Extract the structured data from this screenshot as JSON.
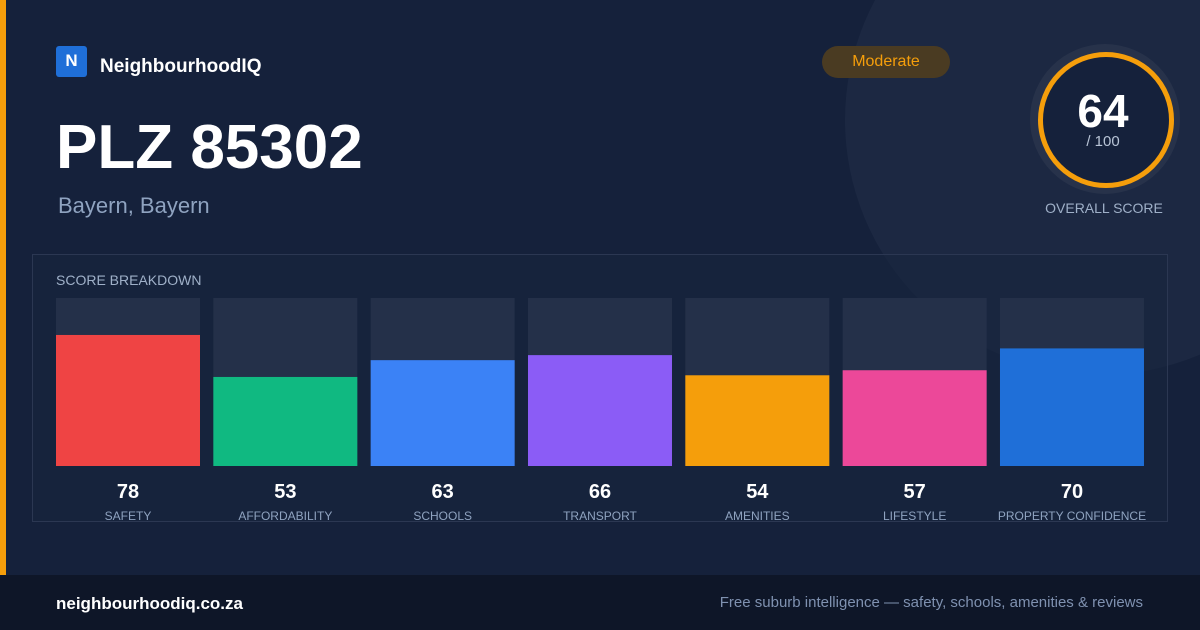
{
  "brand": {
    "logo": "N",
    "name": "NeighbourhoodIQ"
  },
  "header": {
    "title": "PLZ 85302",
    "subtitle": "Bayern, Bayern",
    "badge": "Moderate"
  },
  "overall": {
    "score": 64,
    "max": "/ 100",
    "label": "OVERALL SCORE"
  },
  "chart_data": {
    "type": "bar",
    "title": "SCORE BREAKDOWN",
    "categories": [
      "SAFETY",
      "AFFORDABILITY",
      "SCHOOLS",
      "TRANSPORT",
      "AMENITIES",
      "LIFESTYLE",
      "PROPERTY CONFIDENCE"
    ],
    "values": [
      78,
      53,
      63,
      66,
      54,
      57,
      70
    ],
    "colors": [
      "#ef4444",
      "#10b981",
      "#3b82f6",
      "#8b5cf6",
      "#f59e0b",
      "#ec4899",
      "#1f6fd8"
    ],
    "ylim": [
      0,
      100
    ]
  },
  "footer": {
    "site": "neighbourhoodiq.co.za",
    "tagline": "Free suburb intelligence — safety, schools, amenities & reviews"
  }
}
